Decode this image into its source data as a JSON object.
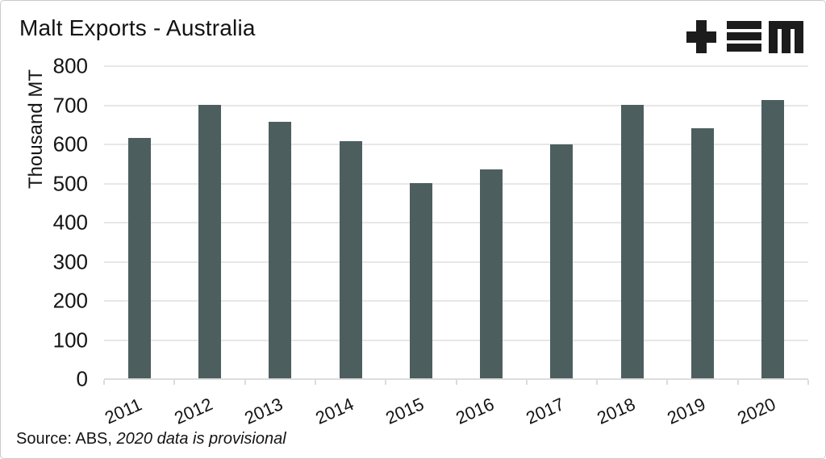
{
  "header": {
    "logo": {
      "name": "tem-logo",
      "color": "#1c1c1c"
    }
  },
  "footer": {
    "source_prefix": "Source: ABS, ",
    "source_note": "2020 data is provisional"
  },
  "chart_data": {
    "type": "bar",
    "title": "Malt Exports - Australia",
    "xlabel": "",
    "ylabel": "Thousand MT",
    "categories": [
      "2011",
      "2012",
      "2013",
      "2014",
      "2015",
      "2016",
      "2017",
      "2018",
      "2019",
      "2020"
    ],
    "values": [
      617,
      701,
      658,
      609,
      500,
      537,
      600,
      700,
      642,
      713
    ],
    "ylim": [
      0,
      800
    ],
    "yticks": [
      0,
      100,
      200,
      300,
      400,
      500,
      600,
      700,
      800
    ],
    "grid": "horizontal gridlines only",
    "legend": "none",
    "colors": {
      "bar": "#4d5e5f",
      "gridline": "#e7e7e7",
      "axis_line": "#dcdcdc",
      "text": "#141414"
    }
  }
}
